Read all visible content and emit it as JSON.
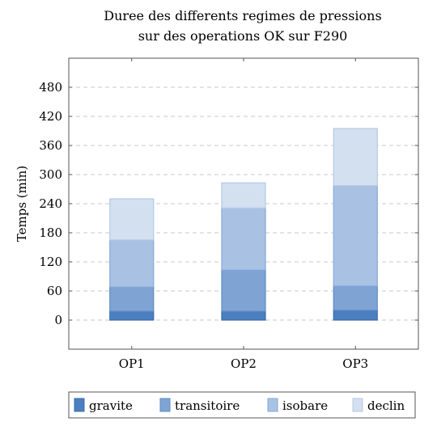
{
  "chart_data": {
    "type": "bar",
    "stacked": true,
    "title": [
      "Duree des differents regimes de pressions",
      "sur des operations OK sur F290"
    ],
    "xlabel": "",
    "ylabel": "Temps (min)",
    "categories": [
      "OP1",
      "OP2",
      "OP3"
    ],
    "ylim": [
      -60,
      540
    ],
    "yticks": [
      0,
      60,
      120,
      180,
      240,
      300,
      360,
      420,
      480
    ],
    "grid": true,
    "legend_position": "bottom",
    "series": [
      {
        "name": "gravite",
        "values": [
          18,
          18,
          20
        ],
        "color": "#4c7fbf",
        "edge": "#3a6cad"
      },
      {
        "name": "transitoire",
        "values": [
          50,
          85,
          50
        ],
        "color": "#7fa4d4",
        "edge": "#5f8bc6"
      },
      {
        "name": "isobare",
        "values": [
          97,
          128,
          207
        ],
        "color": "#a9c2e4",
        "edge": "#86a8d8"
      },
      {
        "name": "declin",
        "values": [
          85,
          52,
          118
        ],
        "color": "#d3e0f0",
        "edge": "#b4c9e6"
      }
    ]
  }
}
